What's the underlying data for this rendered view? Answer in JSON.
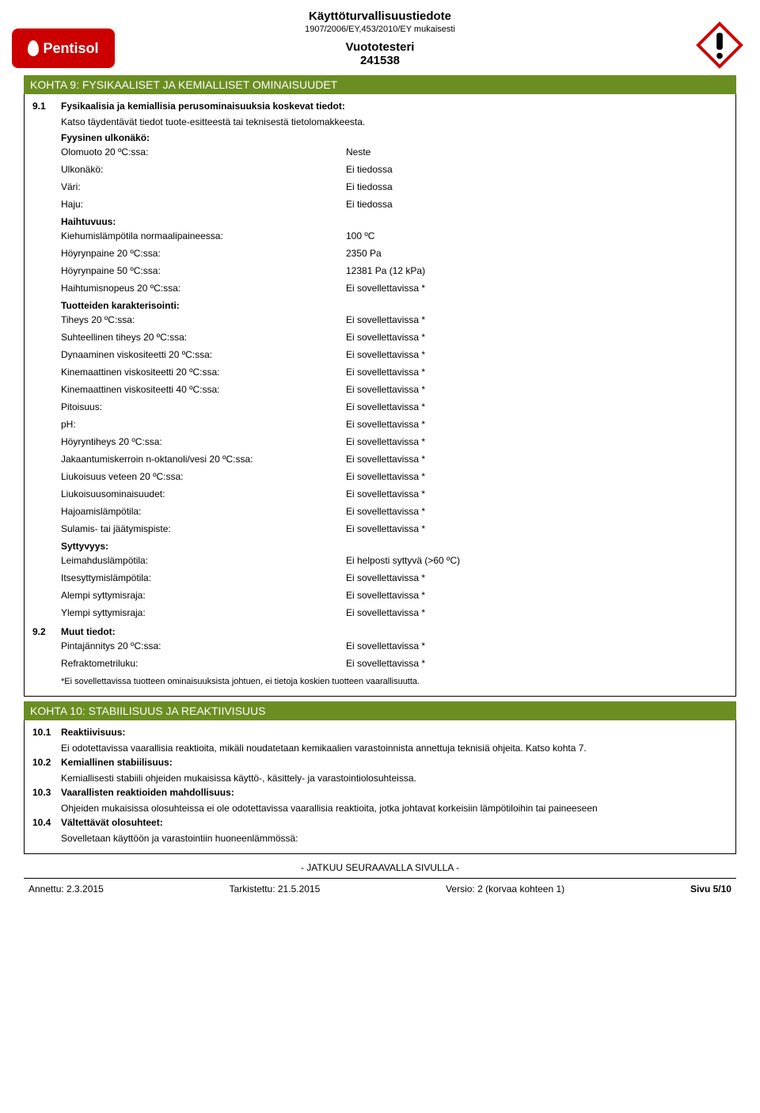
{
  "header": {
    "title": "Käyttöturvallisuustiedote",
    "subtitle": "1907/2006/EY,453/2010/EY mukaisesti",
    "product": "Vuototesteri",
    "product_number": "241538",
    "logo_text": "Pentisol"
  },
  "section9": {
    "heading": "KOHTA 9: FYSIKAALISET JA KEMIALLISET OMINAISUUDET",
    "s91_num": "9.1",
    "s91_title": "Fysikaalisia ja kemiallisia perusominaisuuksia koskevat tiedot:",
    "s91_note": "Katso täydentävät tiedot tuote-esitteestä tai teknisestä tietolomakkeesta.",
    "grp1_title": "Fyysinen ulkonäkö:",
    "rows1": [
      {
        "label": "Olomuoto 20 ºC:ssa:",
        "value": "Neste"
      },
      {
        "label": "Ulkonäkö:",
        "value": "Ei tiedossa"
      },
      {
        "label": "Väri:",
        "value": "Ei tiedossa"
      },
      {
        "label": "Haju:",
        "value": "Ei tiedossa"
      }
    ],
    "grp2_title": "Haihtuvuus:",
    "rows2": [
      {
        "label": "Kiehumislämpötila normaalipaineessa:",
        "value": "100 ºC"
      },
      {
        "label": "Höyrynpaine 20 ºC:ssa:",
        "value": "2350 Pa"
      },
      {
        "label": "Höyrynpaine 50 ºC:ssa:",
        "value": "12381 Pa  (12 kPa)"
      },
      {
        "label": "Haihtumisnopeus 20 ºC:ssa:",
        "value": "Ei sovellettavissa *"
      }
    ],
    "grp3_title": "Tuotteiden karakterisointi:",
    "rows3": [
      {
        "label": "Tiheys 20 ºC:ssa:",
        "value": "Ei sovellettavissa *"
      },
      {
        "label": "Suhteellinen tiheys 20 ºC:ssa:",
        "value": "Ei sovellettavissa *"
      },
      {
        "label": "Dynaaminen viskositeetti 20 ºC:ssa:",
        "value": "Ei sovellettavissa *"
      },
      {
        "label": "Kinemaattinen viskositeetti 20 ºC:ssa:",
        "value": "Ei sovellettavissa *"
      },
      {
        "label": "Kinemaattinen viskositeetti 40 ºC:ssa:",
        "value": "Ei sovellettavissa *"
      },
      {
        "label": "Pitoisuus:",
        "value": "Ei sovellettavissa *"
      },
      {
        "label": "pH:",
        "value": "Ei sovellettavissa *"
      },
      {
        "label": "Höyryntiheys 20 ºC:ssa:",
        "value": "Ei sovellettavissa *"
      },
      {
        "label": "Jakaantumiskerroin n-oktanoli/vesi 20 ºC:ssa:",
        "value": "Ei sovellettavissa *"
      },
      {
        "label": "Liukoisuus veteen 20 ºC:ssa:",
        "value": "Ei sovellettavissa *"
      },
      {
        "label": "Liukoisuusominaisuudet:",
        "value": "Ei sovellettavissa *"
      },
      {
        "label": "Hajoamislämpötila:",
        "value": "Ei sovellettavissa *"
      },
      {
        "label": "Sulamis- tai jäätymispiste:",
        "value": "Ei sovellettavissa *"
      }
    ],
    "grp4_title": "Syttyvyys:",
    "rows4": [
      {
        "label": "Leimahduslämpötila:",
        "value": "Ei helposti syttyvä (>60 ºC)"
      },
      {
        "label": "Itsesyttymislämpötila:",
        "value": "Ei sovellettavissa *"
      },
      {
        "label": "Alempi syttymisraja:",
        "value": "Ei sovellettavissa *"
      },
      {
        "label": "Ylempi syttymisraja:",
        "value": "Ei sovellettavissa *"
      }
    ],
    "s92_num": "9.2",
    "s92_title": "Muut tiedot:",
    "rows92": [
      {
        "label": "Pintajännitys 20 ºC:ssa:",
        "value": "Ei sovellettavissa *"
      },
      {
        "label": "Refraktometriluku:",
        "value": "Ei sovellettavissa *"
      }
    ],
    "footnote": "*Ei sovellettavissa tuotteen ominaisuuksista johtuen, ei tietoja koskien tuotteen vaarallisuutta."
  },
  "section10": {
    "heading": "KOHTA 10: STABIILISUUS JA REAKTIIVISUUS",
    "items": [
      {
        "num": "10.1",
        "title": "Reaktiivisuus:",
        "body": "Ei odotettavissa vaarallisia reaktioita, mikäli noudatetaan kemikaalien varastoinnista annettuja teknisiä ohjeita. Katso kohta 7."
      },
      {
        "num": "10.2",
        "title": "Kemiallinen stabiilisuus:",
        "body": "Kemiallisesti stabiili ohjeiden mukaisissa käyttö-, käsittely- ja varastointiolosuhteissa."
      },
      {
        "num": "10.3",
        "title": "Vaarallisten reaktioiden mahdollisuus:",
        "body": "Ohjeiden mukaisissa olosuhteissa ei ole odotettavissa vaarallisia reaktioita, jotka johtavat korkeisiin lämpötiloihin tai paineeseen"
      },
      {
        "num": "10.4",
        "title": "Vältettävät olosuhteet:",
        "body": "Sovelletaan käyttöön ja varastointiin huoneenlämmössä:"
      }
    ]
  },
  "continue_text": "- JATKUU SEURAAVALLA SIVULLA -",
  "footer": {
    "left": "Annettu: 2.3.2015",
    "mid1": "Tarkistettu: 21.5.2015",
    "mid2": "Versio: 2 (korvaa kohteen 1)",
    "right": "Sivu 5/10"
  }
}
